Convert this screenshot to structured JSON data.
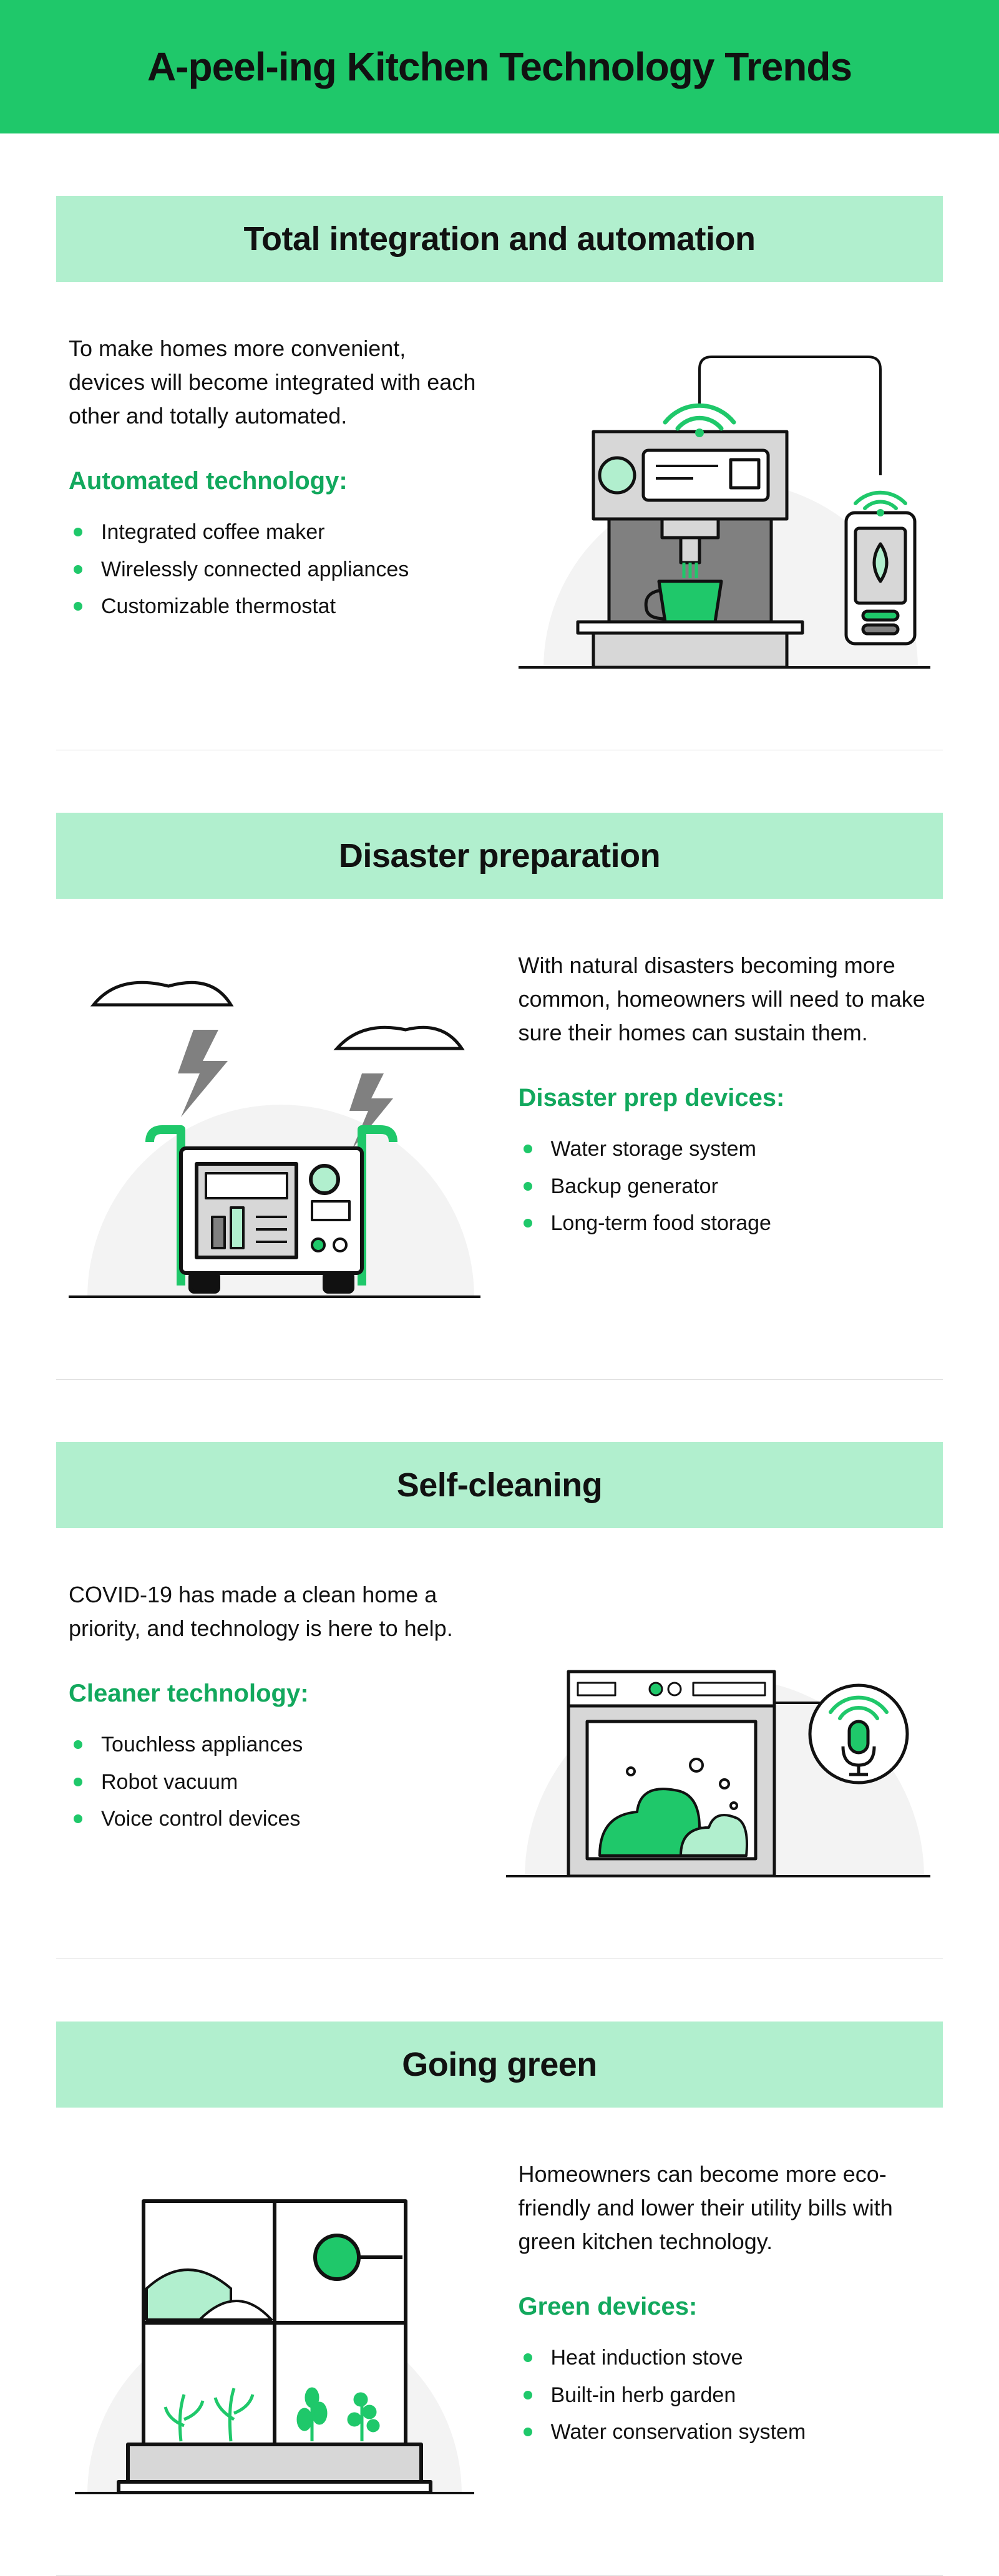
{
  "colors": {
    "banner_bg": "#1fc86a",
    "section_header_bg": "#b1efce",
    "accent": "#12a85d",
    "bullet": "#1fc86a",
    "text": "#111111",
    "divider": "#dddddd",
    "illus_bg": "#f3f3f3",
    "illus_stroke": "#111111",
    "illus_green": "#1fc86a",
    "illus_mint": "#b1efce",
    "illus_grey": "#808080",
    "illus_light": "#d7d7d7"
  },
  "title": "A-peel-ing Kitchen Technology Trends",
  "sections": [
    {
      "id": "integration",
      "heading": "Total integration and automation",
      "intro": "To make homes more convenient, devices will become integrated with each other and totally automated.",
      "list_heading": "Automated technology:",
      "items": [
        "Integrated coffee maker",
        "Wirelessly connected appliances",
        "Customizable thermostat"
      ],
      "image_side": "right"
    },
    {
      "id": "disaster",
      "heading": "Disaster preparation",
      "intro": "With natural disasters becoming more common, homeowners will need to make sure their homes can sustain them.",
      "list_heading": "Disaster prep devices:",
      "items": [
        "Water storage system",
        "Backup generator",
        "Long-term food storage"
      ],
      "image_side": "left"
    },
    {
      "id": "cleaning",
      "heading": "Self-cleaning",
      "intro": "COVID-19 has made a clean home a priority, and technology is here to help.",
      "list_heading": "Cleaner technology:",
      "items": [
        "Touchless appliances",
        "Robot vacuum",
        "Voice control devices"
      ],
      "image_side": "right"
    },
    {
      "id": "green",
      "heading": "Going green",
      "intro": "Homeowners can become more eco-friendly and lower their utility bills with green kitchen technology.",
      "list_heading": "Green devices:",
      "items": [
        "Heat induction stove",
        "Built-in herb garden",
        "Water conservation system"
      ],
      "image_side": "left"
    }
  ]
}
